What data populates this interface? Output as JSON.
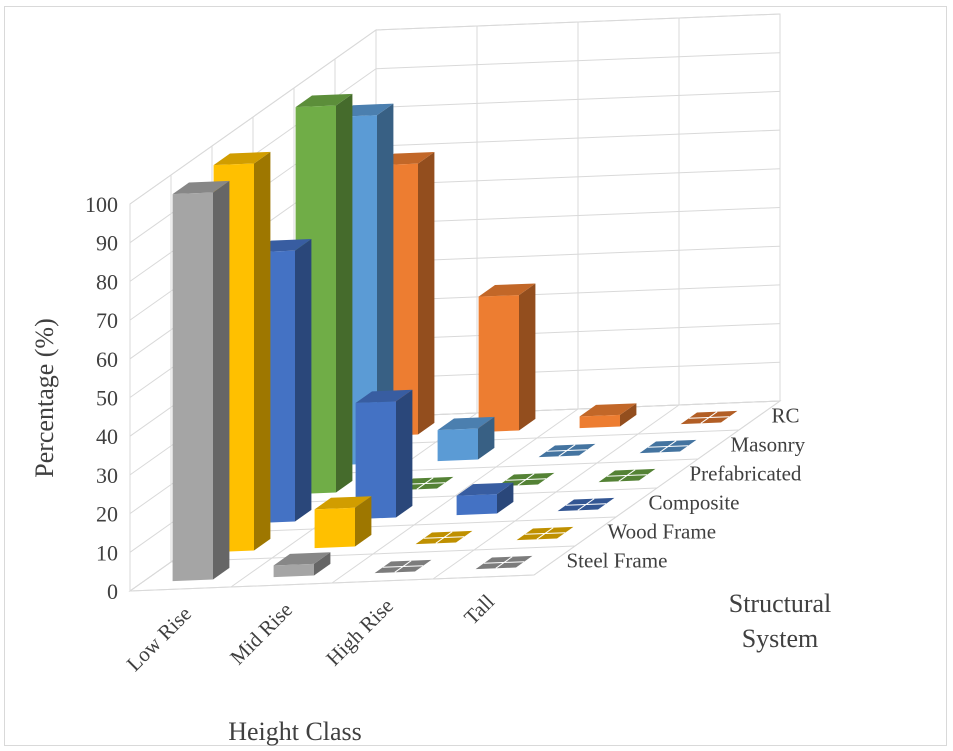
{
  "chart_data": {
    "type": "bar",
    "subtype": "3d-column",
    "title": "",
    "xlabel": "Height Class",
    "ylabel": "Percentage (%)",
    "zlabel": [
      "Structural",
      "System"
    ],
    "ylim": [
      0,
      100
    ],
    "yticks": [
      "0",
      "10",
      "20",
      "30",
      "40",
      "50",
      "60",
      "70",
      "80",
      "90",
      "100"
    ],
    "grid": true,
    "legend": "none",
    "categories": [
      "Low Rise",
      "Mid Rise",
      "High Rise",
      "Tall"
    ],
    "series": [
      {
        "name": "Steel Frame",
        "color": "#a5a5a5",
        "values": [
          100,
          3,
          0,
          0
        ]
      },
      {
        "name": "Wood Frame",
        "color": "#ffc000",
        "values": [
          100,
          10,
          0,
          0
        ]
      },
      {
        "name": "Composite",
        "color": "#4472c4",
        "values": [
          70,
          30,
          5,
          0
        ]
      },
      {
        "name": "Prefabricated",
        "color": "#70ad47",
        "values": [
          100,
          0,
          0,
          0
        ]
      },
      {
        "name": "Masonry",
        "color": "#5b9bd5",
        "values": [
          90,
          8,
          0,
          0
        ]
      },
      {
        "name": "RC",
        "color": "#ed7d31",
        "values": [
          70,
          35,
          3,
          0
        ]
      }
    ]
  }
}
